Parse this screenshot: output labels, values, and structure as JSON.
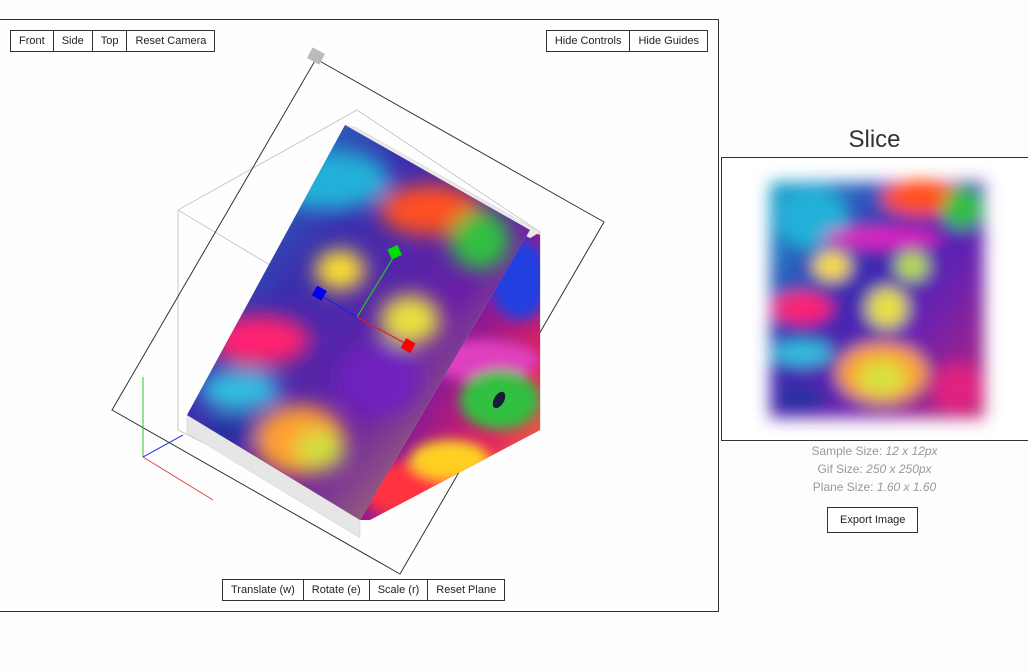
{
  "camera_controls": {
    "front": "Front",
    "side": "Side",
    "top": "Top",
    "reset": "Reset Camera"
  },
  "ui_controls": {
    "hide_controls": "Hide Controls",
    "hide_guides": "Hide Guides"
  },
  "plane_controls": {
    "translate": "Translate (w)",
    "rotate": "Rotate (e)",
    "scale": "Scale (r)",
    "reset": "Reset Plane"
  },
  "slice": {
    "title": "Slice",
    "sample_label": "Sample Size:",
    "sample_value": "12 x 12px",
    "gif_label": "Gif Size:",
    "gif_value": "250 x 250px",
    "plane_label": "Plane Size:",
    "plane_value": "1.60 x 1.60",
    "export_label": "Export Image"
  },
  "icons": {
    "plane_handle": "plane-handle-icon",
    "gizmo_x": "gizmo-x-handle-icon",
    "gizmo_y": "gizmo-y-handle-icon",
    "gizmo_z": "gizmo-z-handle-icon"
  },
  "colors": {
    "gizmo_x": "#ff0000",
    "gizmo_y": "#00dd00",
    "gizmo_z": "#0000ee",
    "border": "#333333",
    "muted_text": "#999999"
  }
}
